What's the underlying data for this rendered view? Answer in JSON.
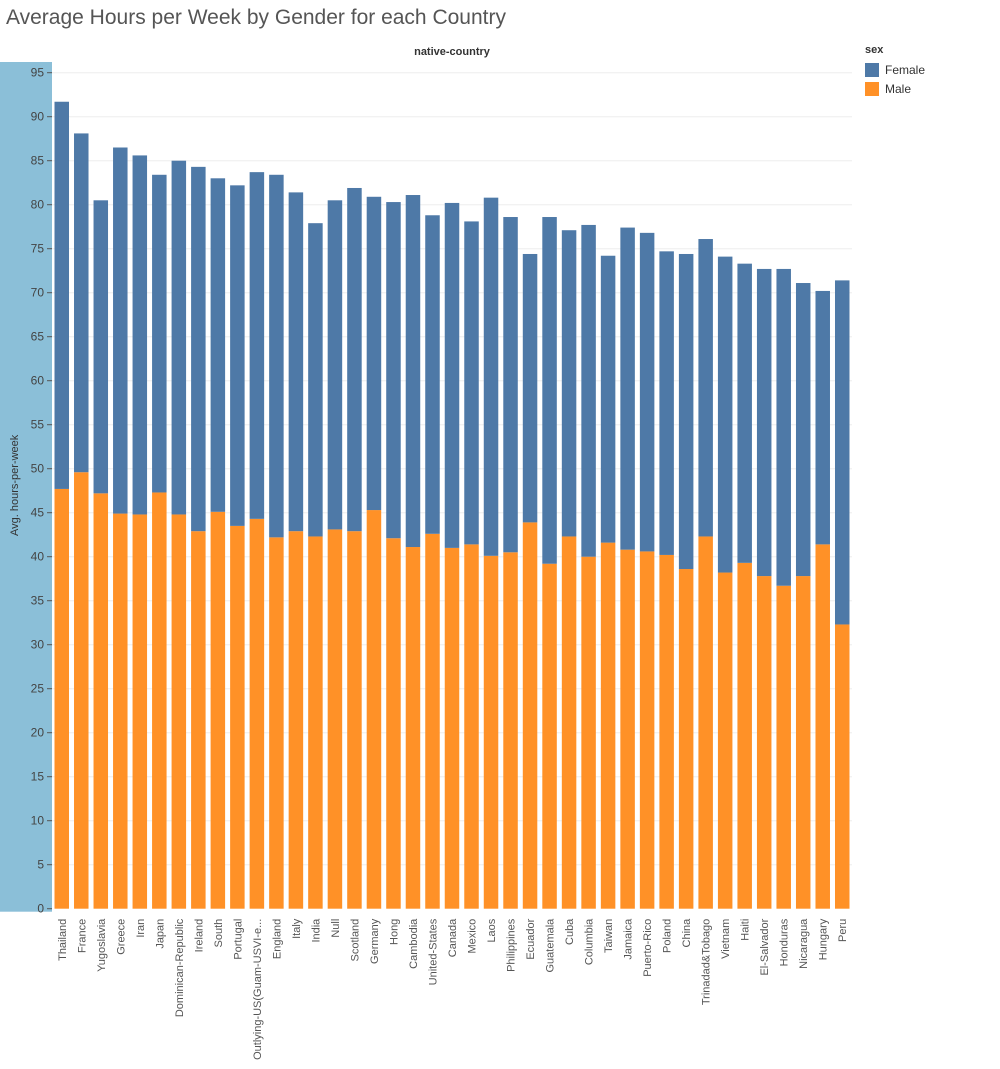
{
  "chart_data": {
    "type": "bar",
    "stacked": true,
    "title": "Average Hours per Week by Gender for each Country",
    "column_header": "native-country",
    "xlabel": "",
    "ylabel": "Avg. hours-per-week",
    "ylim": [
      0,
      95
    ],
    "yticks": [
      0,
      5,
      10,
      15,
      20,
      25,
      30,
      35,
      40,
      45,
      50,
      55,
      60,
      65,
      70,
      75,
      80,
      85,
      90,
      95
    ],
    "grid": true,
    "legend": {
      "title": "sex",
      "placement": "top-right"
    },
    "categories": [
      "Thailand",
      "France",
      "Yugoslavia",
      "Greece",
      "Iran",
      "Japan",
      "Dominican-Republic",
      "Ireland",
      "South",
      "Portugal",
      "Outlying-US(Guam-USVI-e...",
      "England",
      "Italy",
      "India",
      "Null",
      "Scotland",
      "Germany",
      "Hong",
      "Cambodia",
      "United-States",
      "Canada",
      "Mexico",
      "Laos",
      "Philippines",
      "Ecuador",
      "Guatemala",
      "Cuba",
      "Columbia",
      "Taiwan",
      "Jamaica",
      "Puerto-Rico",
      "Poland",
      "China",
      "Trinadad&Tobago",
      "Vietnam",
      "Haiti",
      "El-Salvador",
      "Honduras",
      "Nicaragua",
      "Hungary",
      "Peru"
    ],
    "series": [
      {
        "name": "Male",
        "color": "#ff9127",
        "values": [
          47.7,
          49.6,
          47.2,
          44.9,
          44.8,
          47.3,
          44.8,
          42.9,
          45.1,
          43.5,
          44.3,
          42.2,
          42.9,
          42.3,
          43.1,
          42.9,
          45.3,
          42.1,
          41.1,
          42.6,
          41.0,
          41.4,
          40.1,
          40.5,
          43.9,
          39.2,
          42.3,
          40.0,
          41.6,
          40.8,
          40.6,
          40.2,
          38.6,
          42.3,
          38.2,
          39.3,
          37.8,
          36.7,
          37.8,
          41.4,
          32.3
        ]
      },
      {
        "name": "Female",
        "color": "#4e79a7",
        "values": [
          44.0,
          38.5,
          33.3,
          41.6,
          40.8,
          36.1,
          40.2,
          41.4,
          37.9,
          38.7,
          39.4,
          41.2,
          38.5,
          35.6,
          37.4,
          39.0,
          35.6,
          38.2,
          40.0,
          36.2,
          39.2,
          36.7,
          40.7,
          38.1,
          30.5,
          39.4,
          34.8,
          37.7,
          32.6,
          36.6,
          36.2,
          34.5,
          35.8,
          33.8,
          35.9,
          34.0,
          34.9,
          36.0,
          33.3,
          28.8,
          39.1
        ]
      }
    ]
  }
}
